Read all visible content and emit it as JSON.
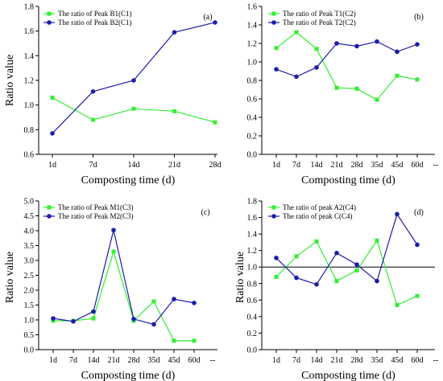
{
  "chart_data": [
    {
      "type": "line",
      "panel_label": "(a)",
      "categories": [
        "1d",
        "7d",
        "14d",
        "21d",
        "28d"
      ],
      "series": [
        {
          "name": "The ratio of Peak B1(C1)",
          "values": [
            1.06,
            0.88,
            0.97,
            0.95,
            0.86
          ],
          "color": "#33ee33",
          "marker": "square"
        },
        {
          "name": "The ratio of Peak B2(C1)",
          "values": [
            0.77,
            1.11,
            1.2,
            1.59,
            1.67
          ],
          "color": "#1c1caa",
          "marker": "circle"
        }
      ],
      "xlabel": "Composting time (d)",
      "ylabel": "Ratio value",
      "ylim": [
        0.6,
        1.8
      ],
      "yticks": [
        "0.6",
        "0.8",
        "1.0",
        "1.2",
        "1.4",
        "1.6",
        "1.8"
      ],
      "trailing_tick_label": "",
      "reference_line": null,
      "legend_position": "top-left",
      "grid": false
    },
    {
      "type": "line",
      "panel_label": "(b)",
      "categories": [
        "1d",
        "7d",
        "14d",
        "21d",
        "28d",
        "35d",
        "45d",
        "60d"
      ],
      "series": [
        {
          "name": "The ratio of Peak T1(C2)",
          "values": [
            1.15,
            1.32,
            1.14,
            0.72,
            0.71,
            0.59,
            0.85,
            0.81
          ],
          "color": "#33ee33",
          "marker": "square"
        },
        {
          "name": "The ratio of Peak T2(C2)",
          "values": [
            0.92,
            0.84,
            0.94,
            1.2,
            1.17,
            1.22,
            1.11,
            1.19
          ],
          "color": "#1c1caa",
          "marker": "circle"
        }
      ],
      "xlabel": "Composting time (d)",
      "ylabel": "",
      "ylim": [
        0.0,
        1.6
      ],
      "yticks": [
        "0.0",
        "0.2",
        "0.4",
        "0.6",
        "0.8",
        "1.0",
        "1.2",
        "1.4",
        "1.6"
      ],
      "trailing_tick_label": "--",
      "reference_line": null,
      "legend_position": "top-left",
      "grid": false
    },
    {
      "type": "line",
      "panel_label": "(c)",
      "categories": [
        "1d",
        "7d",
        "14d",
        "21d",
        "28d",
        "35d",
        "45d",
        "60d"
      ],
      "series": [
        {
          "name": "The ratio of Peak M1(C3)",
          "values": [
            0.97,
            0.97,
            1.05,
            3.3,
            0.97,
            1.62,
            0.3,
            0.3
          ],
          "color": "#33ee33",
          "marker": "square"
        },
        {
          "name": "The ratio of Peak M2(C3)",
          "values": [
            1.05,
            0.95,
            1.28,
            4.02,
            1.03,
            0.85,
            1.7,
            1.57
          ],
          "color": "#1c1caa",
          "marker": "circle"
        }
      ],
      "xlabel": "Composting time (d)",
      "ylabel": "Ratio value",
      "ylim": [
        0.0,
        5.0
      ],
      "yticks": [
        "0.0",
        "0.5",
        "1.0",
        "1.5",
        "2.0",
        "2.5",
        "3.0",
        "3.5",
        "4.0",
        "4.5",
        "5.0"
      ],
      "trailing_tick_label": "--",
      "reference_line": null,
      "legend_position": "top-left",
      "grid": false
    },
    {
      "type": "line",
      "panel_label": "(d)",
      "categories": [
        "1d",
        "7d",
        "14d",
        "21d",
        "28d",
        "35d",
        "45d",
        "60d"
      ],
      "series": [
        {
          "name": "The ratio of peak A2(C4)",
          "values": [
            0.88,
            1.13,
            1.31,
            0.83,
            0.96,
            1.32,
            0.54,
            0.65
          ],
          "color": "#33ee33",
          "marker": "square"
        },
        {
          "name": "The ratio of peak C(C4)",
          "values": [
            1.11,
            0.87,
            0.79,
            1.17,
            1.03,
            0.83,
            1.64,
            1.27
          ],
          "color": "#1c1caa",
          "marker": "circle"
        }
      ],
      "xlabel": "Composting time (d)",
      "ylabel": "Ratio value",
      "ylim": [
        0.0,
        1.8
      ],
      "yticks": [
        "0.0",
        "0.2",
        "0.4",
        "0.6",
        "0.8",
        "1.0",
        "1.2",
        "1.4",
        "1.6",
        "1.8"
      ],
      "trailing_tick_label": "--",
      "reference_line": 1.0,
      "legend_position": "top-left",
      "grid": false
    }
  ]
}
